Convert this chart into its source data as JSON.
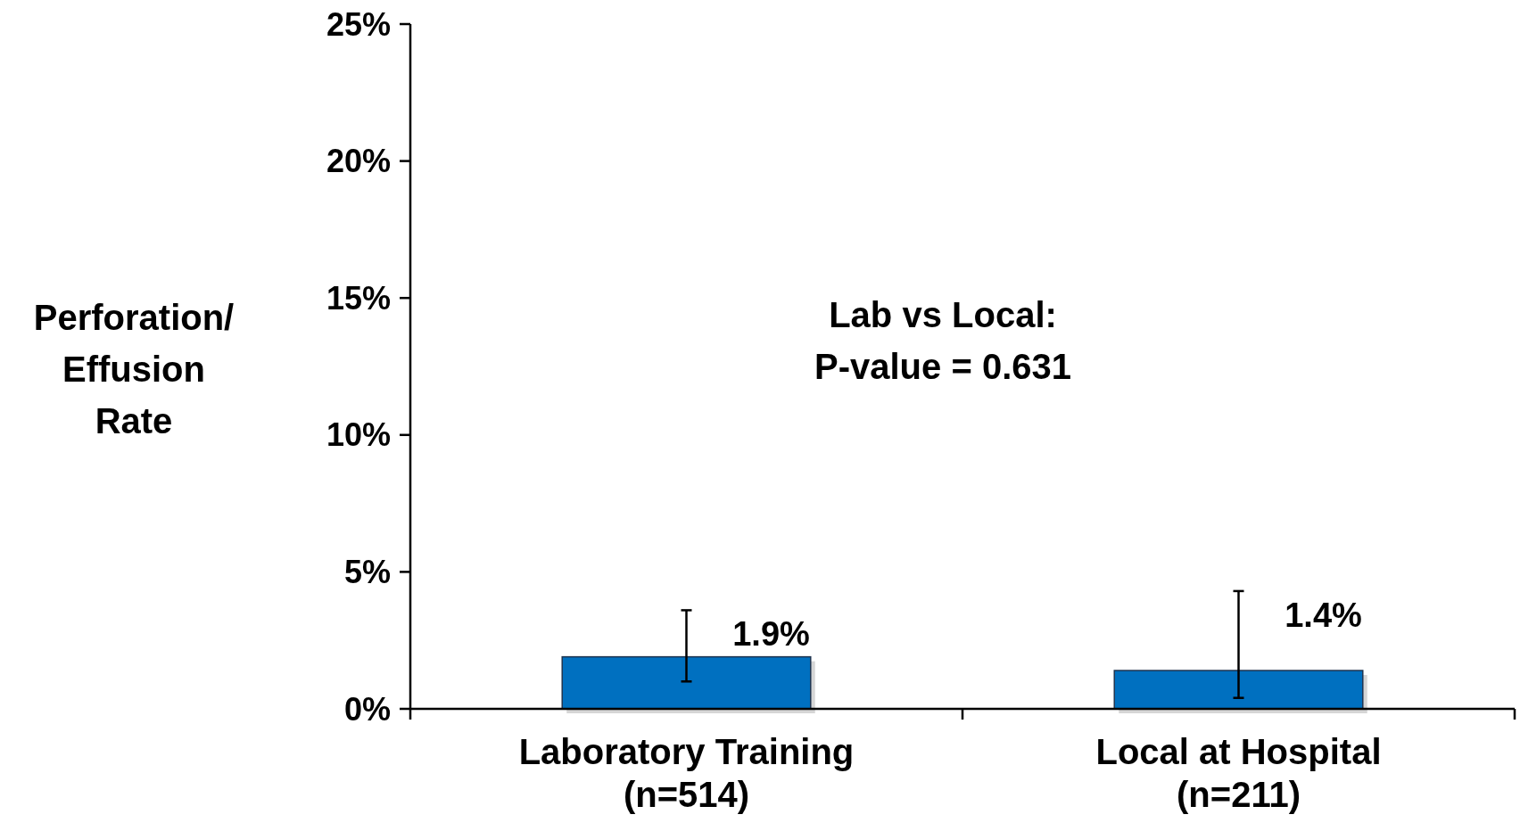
{
  "chart_data": {
    "type": "bar",
    "ylabel": "Perforation/ Effusion Rate",
    "categories": [
      "Laboratory Training\n(n=514)",
      "Local at Hospital\n(n=211)"
    ],
    "values": [
      1.9,
      1.4
    ],
    "errors": [
      [
        1.0,
        3.6
      ],
      [
        0.4,
        4.3
      ]
    ],
    "value_labels": [
      "1.9%",
      "1.4%"
    ],
    "color": "#0070c0",
    "ylim": [
      0,
      25
    ],
    "yticks": [
      {
        "value": 0,
        "label": "0%"
      },
      {
        "value": 5,
        "label": "5%"
      },
      {
        "value": 10,
        "label": "10%"
      },
      {
        "value": 15,
        "label": "15%"
      },
      {
        "value": 20,
        "label": "20%"
      },
      {
        "value": 25,
        "label": "25%"
      }
    ],
    "annotations": [
      "Lab vs Local:\nP-value = 0.631"
    ]
  }
}
